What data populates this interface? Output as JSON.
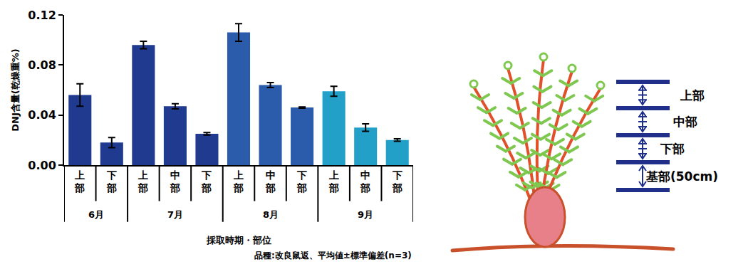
{
  "chart_data": {
    "type": "bar",
    "ylabel": "DNJ含量(乾燥重%)",
    "xlabel": "採取時期・部位",
    "note": "品種:改良鼠返、平均値±標準偏差(n=3)",
    "categories": [
      "上部",
      "下部",
      "上部",
      "中部",
      "下部",
      "上部",
      "中部",
      "下部",
      "上部",
      "中部",
      "下部"
    ],
    "groups": [
      "6月",
      "6月",
      "7月",
      "7月",
      "7月",
      "8月",
      "8月",
      "8月",
      "9月",
      "9月",
      "9月"
    ],
    "values": [
      0.056,
      0.018,
      0.096,
      0.047,
      0.025,
      0.106,
      0.064,
      0.046,
      0.059,
      0.03,
      0.02
    ],
    "errors": [
      0.009,
      0.004,
      0.003,
      0.002,
      0.001,
      0.007,
      0.002,
      0.0005,
      0.004,
      0.003,
      0.001
    ],
    "colors": [
      "#1f3a8f",
      "#1f3a8f",
      "#1f3a8f",
      "#1f3a8f",
      "#1f3a8f",
      "#2b5cab",
      "#2b5cab",
      "#2b5cab",
      "#22a0c8",
      "#22a0c8",
      "#22a0c8"
    ],
    "ylim": [
      0,
      0.12
    ],
    "yticks": [
      {
        "value": 0,
        "label": "0.00"
      },
      0.04,
      0.08,
      0.12
    ],
    "grid": false
  },
  "diagram": {
    "labels": [
      "上部",
      "中部",
      "下部",
      "基部(50cm)"
    ]
  }
}
